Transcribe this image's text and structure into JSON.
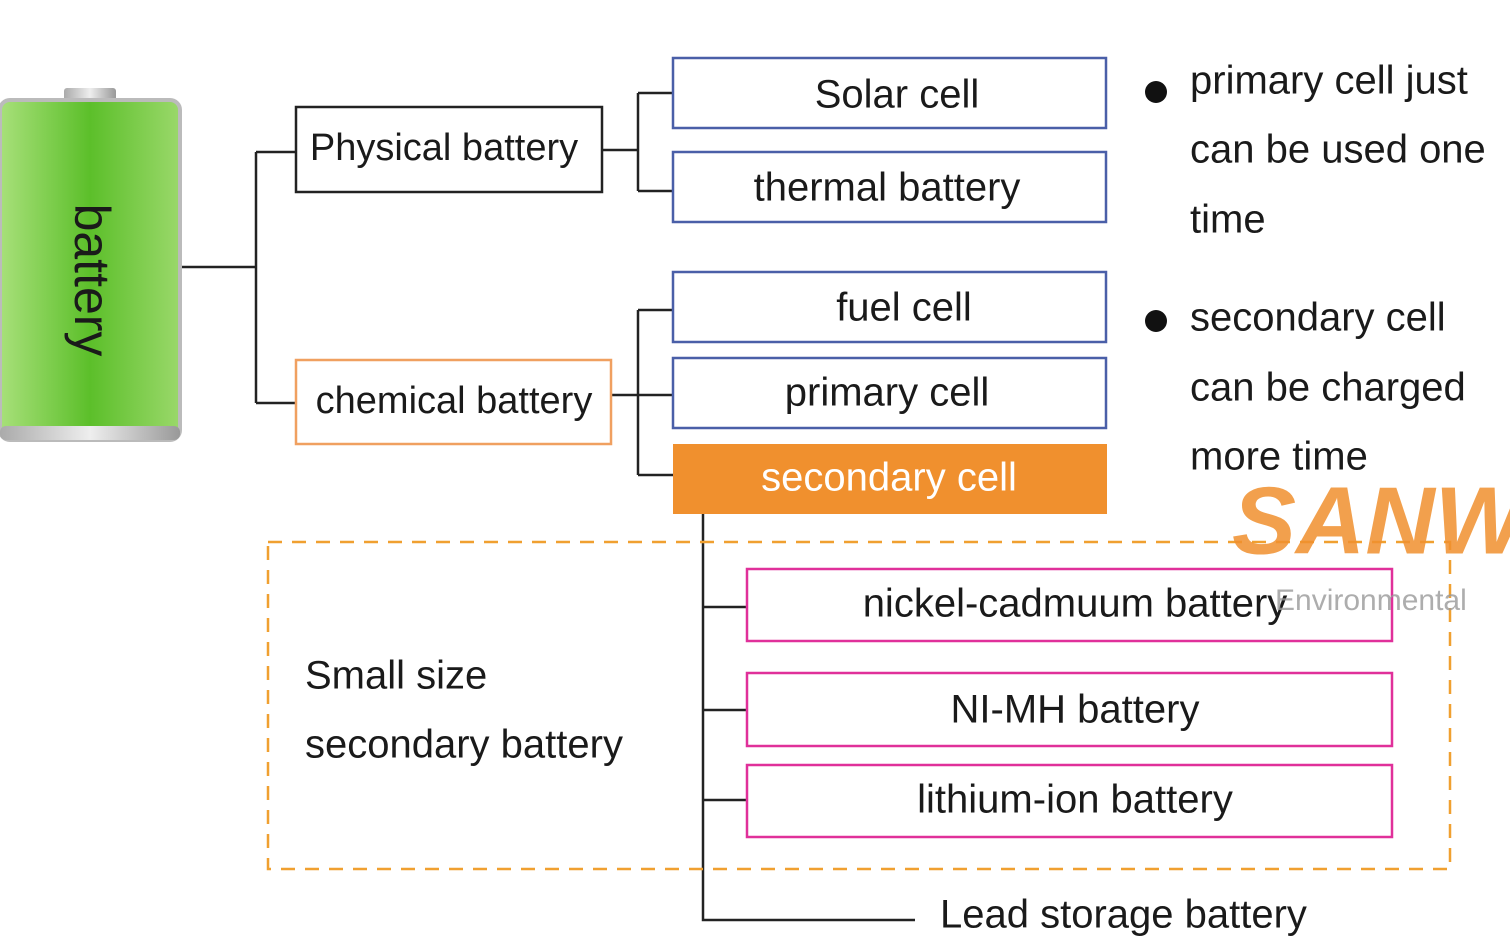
{
  "root": {
    "label": "battery"
  },
  "branches": [
    {
      "label": "Physical battery",
      "children": [
        {
          "label": "Solar cell"
        },
        {
          "label": "thermal battery"
        }
      ]
    },
    {
      "label": "chemical battery",
      "children": [
        {
          "label": "fuel cell"
        },
        {
          "label": "primary cell"
        },
        {
          "label": "secondary cell"
        }
      ]
    }
  ],
  "secondary_types": [
    {
      "label": "nickel-cadmuum battery"
    },
    {
      "label": "NI-MH battery"
    },
    {
      "label": "lithium-ion battery"
    },
    {
      "label": "Lead storage battery"
    }
  ],
  "group": {
    "label_lines": [
      "Small size",
      "secondary battery"
    ]
  },
  "notes": [
    {
      "lines": [
        "primary cell just",
        "can be used one",
        "time"
      ]
    },
    {
      "lines": [
        "secondary cell",
        "can be charged",
        "more time"
      ]
    }
  ],
  "watermark": {
    "brand": "SANW",
    "tagline": "Environmental"
  }
}
